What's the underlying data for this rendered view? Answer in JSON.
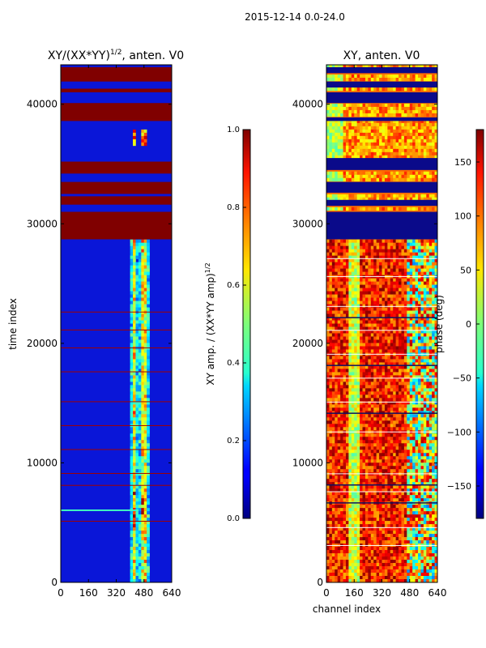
{
  "suptitle": "2015-12-14 0.0-24.0",
  "chart_data": [
    {
      "type": "heatmap",
      "title_main": "XY/(XX*YY)",
      "title_exp": "1/2",
      "title_tail": ", anten. V0",
      "xlabel": "",
      "ylabel": "time index",
      "x_ticks": [
        0,
        160,
        320,
        480,
        640
      ],
      "y_ticks": [
        0,
        10000,
        20000,
        30000,
        40000
      ],
      "xlim": [
        0,
        640
      ],
      "ylim": [
        0,
        43300
      ],
      "colorbar": {
        "label_main": "XY amp. / (XX*YY amp)",
        "label_exp": "1/2",
        "range": [
          0.0,
          1.0
        ],
        "ticks": [
          "0.0",
          "0.2",
          "0.4",
          "0.6",
          "0.8",
          "1.0"
        ]
      },
      "saturated_blocks_rows": [
        [
          28700,
          31000
        ],
        [
          31600,
          32300
        ],
        [
          32500,
          33500
        ],
        [
          34200,
          35200
        ],
        [
          38600,
          40100
        ],
        [
          41000,
          41300
        ],
        [
          41900,
          43100
        ]
      ],
      "hot_features": {
        "channels": [
          420,
          490
        ],
        "rows": [
          [
            4500,
            7800
          ],
          [
            36500,
            38000
          ]
        ]
      }
    },
    {
      "type": "heatmap",
      "title_main": "XY, anten. V0",
      "xlabel": "channel index",
      "ylabel": "",
      "x_ticks": [
        0,
        160,
        320,
        480,
        640
      ],
      "y_ticks": [
        0,
        10000,
        20000,
        30000,
        40000
      ],
      "xlim": [
        0,
        640
      ],
      "ylim": [
        0,
        43300
      ],
      "colorbar": {
        "label_main": "phase (deg)",
        "range": [
          -180,
          180
        ],
        "ticks": [
          "150",
          "100",
          "50",
          "0",
          "−50",
          "−100",
          "−150"
        ],
        "tick_values": [
          150,
          100,
          50,
          0,
          -50,
          -100,
          -150
        ]
      },
      "blocked_rows": [
        [
          28700,
          31000
        ],
        [
          31500,
          32000
        ],
        [
          32600,
          33500
        ],
        [
          34500,
          35500
        ],
        [
          38600,
          38900
        ],
        [
          40100,
          41000
        ],
        [
          41400,
          41900
        ],
        [
          42600,
          43100
        ]
      ]
    }
  ]
}
